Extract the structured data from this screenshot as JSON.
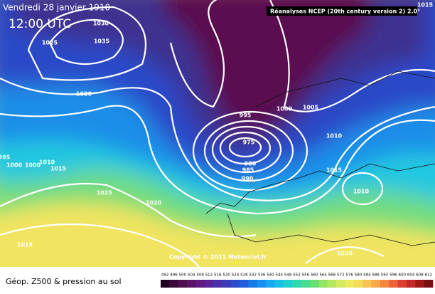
{
  "header": {
    "title": "Vendredi 28 janvier 1910",
    "time": "12:00 UTC",
    "source": "Réanalyses NCEP (20th century version 2) 2.0°"
  },
  "copyright": "Copyright © 2011 Meteociel.fr",
  "isobar_labels": [
    "1030",
    "1035",
    "1025",
    "1020",
    "995",
    "1000",
    "1005",
    "1010",
    "975",
    "980",
    "985",
    "990",
    "1015",
    "995",
    "1000",
    "1000",
    "1010",
    "1015",
    "1025",
    "1020",
    "1015",
    "1010",
    "1020",
    "1015"
  ],
  "legend": {
    "title": "Géop. Z500 & pression au sol",
    "labels": [
      "492",
      "496",
      "500",
      "504",
      "508",
      "512",
      "516",
      "520",
      "524",
      "528",
      "532",
      "536",
      "540",
      "544",
      "548",
      "552",
      "556",
      "560",
      "564",
      "568",
      "572",
      "576",
      "580",
      "584",
      "588",
      "592",
      "596",
      "600",
      "604",
      "608",
      "612"
    ],
    "colors": [
      "#1e0020",
      "#3a0a3c",
      "#4e1050",
      "#5a1466",
      "#601a80",
      "#5a2496",
      "#4a30a8",
      "#3a3cb8",
      "#2c4ccc",
      "#2060dc",
      "#1878e8",
      "#1890f0",
      "#18a8f0",
      "#18c0e8",
      "#20d0d0",
      "#30d8b0",
      "#48dc90",
      "#68e070",
      "#90e468",
      "#b4e860",
      "#d4ec60",
      "#ecec60",
      "#f4dc58",
      "#f8c450",
      "#f8a848",
      "#f48840",
      "#ec6438",
      "#dc4030",
      "#c42828",
      "#a01818",
      "#781010"
    ]
  }
}
